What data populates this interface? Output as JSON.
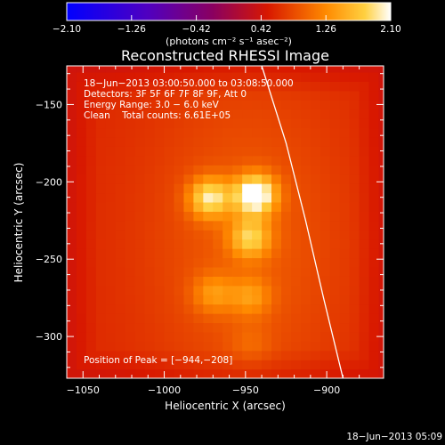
{
  "chart_data": {
    "type": "heatmap",
    "title": "Reconstructed RHESSI Image",
    "xlabel": "Heliocentric X (arcsec)",
    "ylabel": "Heliocentric Y (arcsec)",
    "xlim": [
      -1060,
      -865
    ],
    "ylim": [
      -327,
      -125
    ],
    "x_ticks": [
      -1050,
      -1000,
      -950,
      -900
    ],
    "x_tick_labels": [
      "−1050",
      "−1000",
      "−950",
      "−900"
    ],
    "y_ticks": [
      -150,
      -200,
      -250,
      -300
    ],
    "y_tick_labels": [
      "−150",
      "−200",
      "−250",
      "−300"
    ],
    "colorbar": {
      "min": -2.1,
      "max": 2.1,
      "ticks": [
        -2.1,
        -1.26,
        -0.42,
        0.42,
        1.26,
        2.1
      ],
      "tick_labels": [
        "−2.10",
        "−1.26",
        "−0.42",
        "0.42",
        "1.26",
        "2.10"
      ],
      "units": "(photons cm⁻² s⁻¹ asec⁻²)"
    },
    "info_lines": [
      "18−Jun−2013 03:00:50.000 to 03:08:50.000",
      "Detectors: 3F 5F 6F 7F 8F 9F, Att 0",
      "Energy Range: 3.0 − 6.0 keV",
      "Clean    Total counts: 6.61E+05"
    ],
    "peak_label": "Position of Peak = [−944,−208]",
    "peak_position": [
      -944,
      -208
    ],
    "sources": [
      {
        "x": -944,
        "y": -208,
        "peak": 2.1
      },
      {
        "x": -972,
        "y": -210,
        "peak": 1.7
      },
      {
        "x": -947,
        "y": -236,
        "peak": 1.5
      },
      {
        "x": -970,
        "y": -272,
        "peak": 1.1
      },
      {
        "x": -947,
        "y": -274,
        "peak": 1.1
      },
      {
        "x": -947,
        "y": -305,
        "peak": 0.8
      }
    ],
    "background_level": 0.6,
    "limb_curve": [
      [
        -940,
        -125
      ],
      [
        -925,
        -175
      ],
      [
        -913,
        -225
      ],
      [
        -902,
        -275
      ],
      [
        -890,
        -327
      ]
    ],
    "footer": "18−Jun−2013 05:09"
  }
}
